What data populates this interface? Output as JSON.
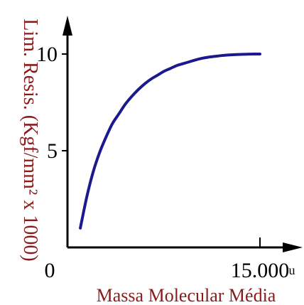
{
  "chart_data": {
    "type": "line",
    "xlabel": "Massa Molecular Média",
    "ylabel": "Lim. Resis. (Kgf/mm² x 1000)",
    "origin_label": "0",
    "x_tick_labels": [
      {
        "value": 15000,
        "label": "15.000"
      }
    ],
    "x_unit": "u",
    "y_tick_labels": [
      {
        "value": 5,
        "label": "5"
      },
      {
        "value": 10,
        "label": "10"
      }
    ],
    "xlim": [
      0,
      15000
    ],
    "ylim": [
      0,
      11
    ],
    "grid": false,
    "series": [
      {
        "x": [
          1000,
          1500,
          2000,
          2500,
          3000,
          3500,
          4000,
          4500,
          5000,
          5500,
          6000,
          6500,
          7000,
          7500,
          8000,
          8500,
          9000,
          9500,
          10000,
          10500,
          11000,
          11500,
          12000,
          12500,
          13000,
          13500,
          14000,
          14500,
          15000
        ],
        "y": [
          1.0,
          2.6,
          3.9,
          4.9,
          5.7,
          6.4,
          6.9,
          7.4,
          7.8,
          8.15,
          8.45,
          8.7,
          8.9,
          9.1,
          9.25,
          9.4,
          9.5,
          9.6,
          9.7,
          9.78,
          9.84,
          9.88,
          9.92,
          9.95,
          9.97,
          9.98,
          9.99,
          10.0,
          10.0
        ]
      }
    ],
    "colors": {
      "curve": "#1a1a8c",
      "axis": "#000000",
      "labels": "#8b1a1a",
      "ticks": "#000000"
    }
  }
}
